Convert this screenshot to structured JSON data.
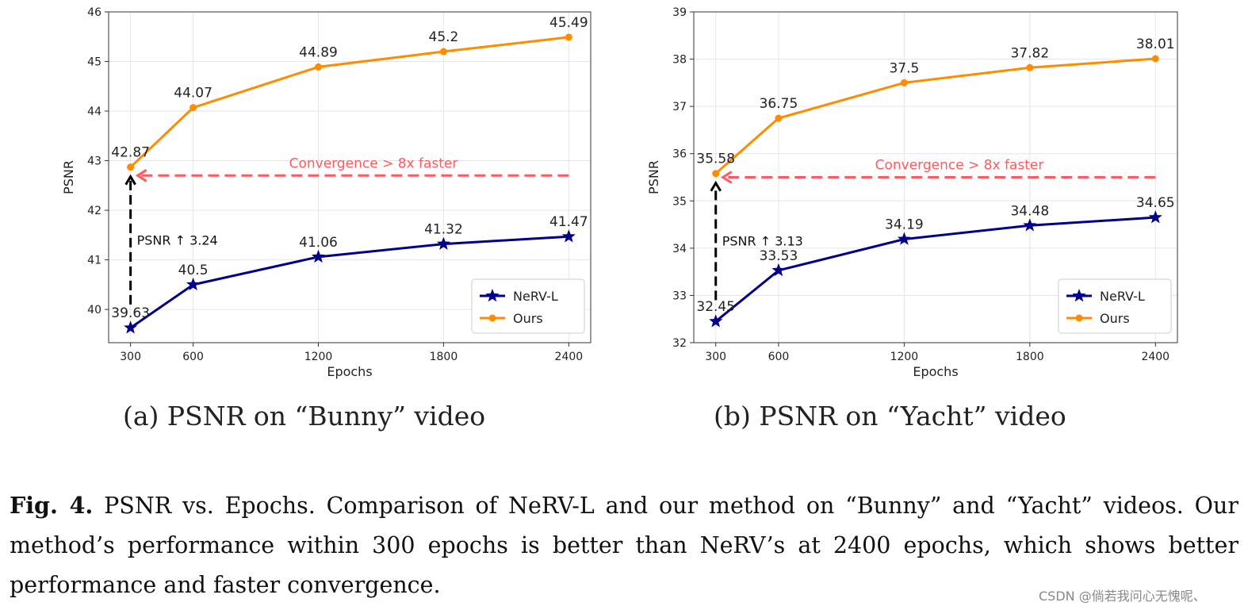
{
  "chart_data": [
    {
      "type": "line",
      "subcaption": "(a) PSNR on “Bunny” video",
      "xlabel": "Epochs",
      "ylabel": "PSNR",
      "x": [
        300,
        600,
        1200,
        1800,
        2400
      ],
      "xticks": [
        300,
        600,
        1200,
        1800,
        2400
      ],
      "yticks": [
        40,
        41,
        42,
        43,
        44,
        45,
        46
      ],
      "xlim": [
        195,
        2505
      ],
      "ylim": [
        39.33,
        46
      ],
      "grid": true,
      "legend": "lower-right",
      "series": [
        {
          "name": "NeRV-L",
          "color": "#00008b",
          "marker": "star",
          "values": [
            39.63,
            40.5,
            41.06,
            41.32,
            41.47
          ]
        },
        {
          "name": "Ours",
          "color": "#ff8c00",
          "marker": "circle",
          "values": [
            42.87,
            44.07,
            44.89,
            45.2,
            45.49
          ]
        }
      ],
      "annotations": {
        "arrow_y": 42.7,
        "arrow_text": "Convergence > 8x faster",
        "arrow_color": "#ff5a5f",
        "vert_from": 40.1,
        "vert_text": "PSNR ↑ 3.24"
      }
    },
    {
      "type": "line",
      "subcaption": "(b) PSNR on “Yacht” video",
      "xlabel": "Epochs",
      "ylabel": "PSNR",
      "x": [
        300,
        600,
        1200,
        1800,
        2400
      ],
      "xticks": [
        300,
        600,
        1200,
        1800,
        2400
      ],
      "yticks": [
        32,
        33,
        34,
        35,
        36,
        37,
        38,
        39
      ],
      "xlim": [
        195,
        2505
      ],
      "ylim": [
        32,
        39
      ],
      "grid": true,
      "legend": "lower-right",
      "series": [
        {
          "name": "NeRV-L",
          "color": "#00008b",
          "marker": "star",
          "values": [
            32.45,
            33.53,
            34.19,
            34.48,
            34.65
          ]
        },
        {
          "name": "Ours",
          "color": "#ff8c00",
          "marker": "circle",
          "values": [
            35.58,
            36.75,
            37.5,
            37.82,
            38.01
          ]
        }
      ],
      "annotations": {
        "arrow_y": 35.5,
        "arrow_text": "Convergence > 8x faster",
        "arrow_color": "#ff5a5f",
        "vert_from": 32.9,
        "vert_text": "PSNR ↑ 3.13"
      }
    }
  ],
  "caption": {
    "label": "Fig. 4.",
    "text": " PSNR vs. Epochs. Comparison of NeRV-L and our method on “Bunny” and “Yacht” videos. Our method’s performance within 300 epochs is better than NeRV’s at 2400 epochs, which shows better performance and faster convergence."
  },
  "watermark": "CSDN @倘若我问心无愧呢、"
}
